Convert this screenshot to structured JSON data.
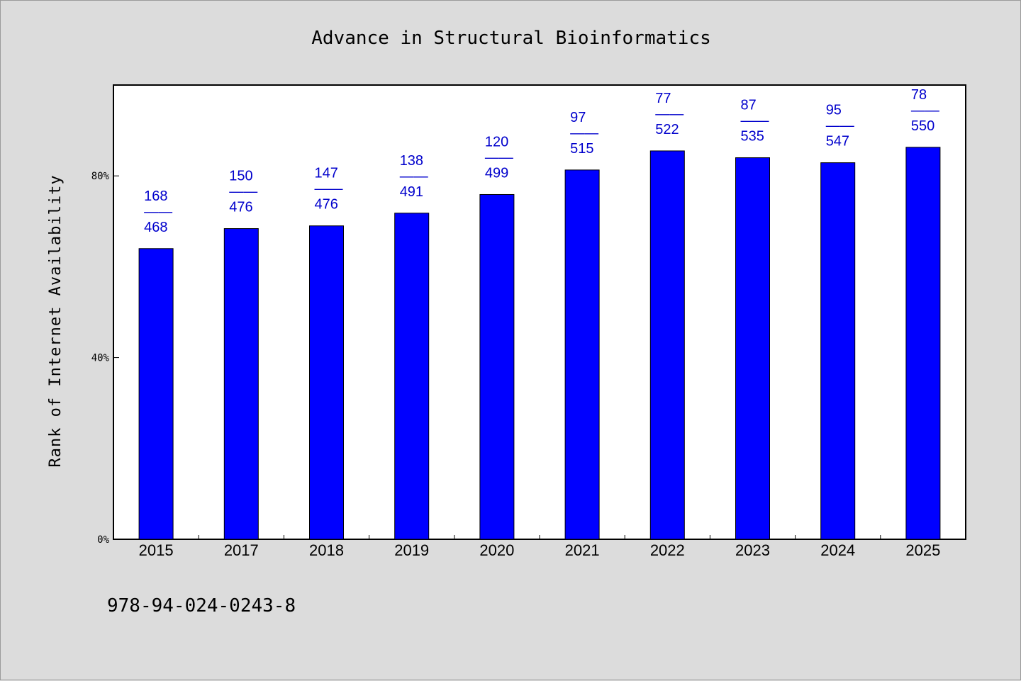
{
  "chart_data": {
    "type": "bar",
    "title": "Advance in Structural Bioinformatics",
    "xlabel": "",
    "ylabel": "Rank of Internet Availability",
    "categories": [
      "2015",
      "2017",
      "2018",
      "2019",
      "2020",
      "2021",
      "2022",
      "2023",
      "2024",
      "2025"
    ],
    "values": [
      64,
      68.4,
      69,
      71.8,
      75.9,
      81.3,
      85.5,
      84,
      82.9,
      86.3
    ],
    "data_labels": [
      {
        "top": "168",
        "sep": "——",
        "bottom": "468"
      },
      {
        "top": "150",
        "sep": "——",
        "bottom": "476"
      },
      {
        "top": "147",
        "sep": "——",
        "bottom": "476"
      },
      {
        "top": "138",
        "sep": "——",
        "bottom": "491"
      },
      {
        "top": "120",
        "sep": "——",
        "bottom": "499"
      },
      {
        "top": "97",
        "sep": "——",
        "bottom": "515"
      },
      {
        "top": "77",
        "sep": "——",
        "bottom": "522"
      },
      {
        "top": "87",
        "sep": "——",
        "bottom": "535"
      },
      {
        "top": "95",
        "sep": "——",
        "bottom": "547"
      },
      {
        "top": "78",
        "sep": "——",
        "bottom": "550"
      }
    ],
    "ylim": [
      0,
      100
    ],
    "yticks": [
      0,
      40,
      80
    ],
    "ytick_labels": [
      "0%",
      "40%",
      "80%"
    ],
    "grid": false,
    "bar_color": "#0000ff",
    "label_color": "#0000cc",
    "plot_background": "#ffffff",
    "page_background": "#dcdcdc"
  },
  "footer": {
    "isbn": "978-94-024-0243-8"
  }
}
